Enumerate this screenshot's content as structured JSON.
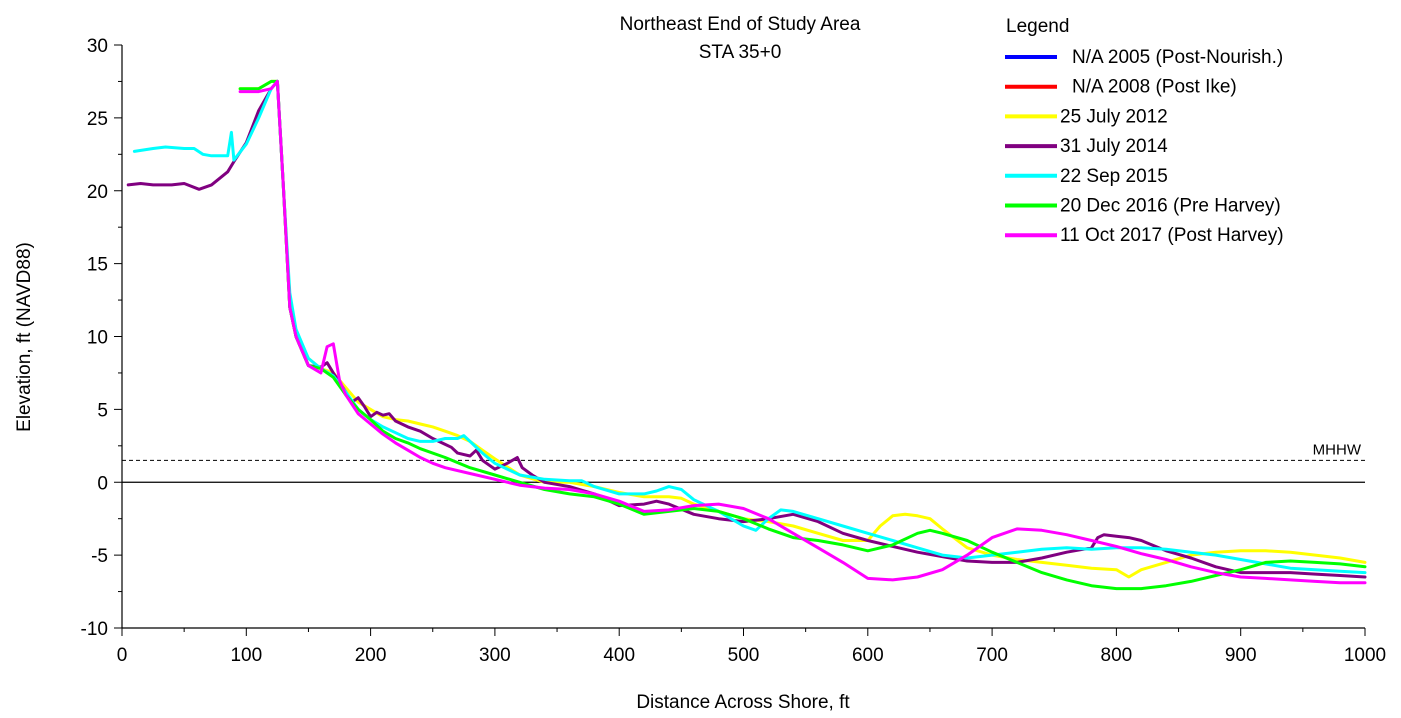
{
  "chart_data": {
    "type": "line",
    "title_line1": "Northeast End of Study Area",
    "title_line2": "STA 35+0",
    "xlabel": "Distance Across Shore, ft",
    "ylabel": "Elevation, ft (NAVD88)",
    "xlim": [
      0,
      1000
    ],
    "ylim": [
      -10,
      30
    ],
    "x_ticks": [
      0,
      100,
      200,
      300,
      400,
      500,
      600,
      700,
      800,
      900,
      1000
    ],
    "y_ticks": [
      -10,
      -5,
      0,
      5,
      10,
      15,
      20,
      25,
      30
    ],
    "legend_title": "Legend",
    "legend_position": "top-right",
    "reference_lines": [
      {
        "label": "MHHW",
        "y": 1.5,
        "style": "dashed"
      },
      {
        "label": "",
        "y": 0,
        "style": "solid"
      }
    ],
    "series": [
      {
        "name": "N/A 2005 (Post-Nourish.)",
        "color": "#0000ff",
        "x": [],
        "y": []
      },
      {
        "name": "N/A 2008 (Post Ike)",
        "color": "#ff0000",
        "x": [],
        "y": []
      },
      {
        "name": "25 July 2012",
        "color": "#ffff00",
        "x": [
          95,
          110,
          120,
          125,
          130,
          135,
          140,
          150,
          160,
          170,
          180,
          190,
          200,
          210,
          220,
          230,
          240,
          250,
          260,
          270,
          280,
          290,
          300,
          320,
          340,
          360,
          380,
          400,
          420,
          440,
          450,
          460,
          480,
          500,
          520,
          540,
          560,
          580,
          600,
          610,
          620,
          630,
          640,
          650,
          660,
          680,
          700,
          720,
          740,
          760,
          780,
          800,
          810,
          820,
          840,
          860,
          880,
          900,
          920,
          940,
          960,
          980,
          1000
        ],
        "y": [
          27,
          27,
          27.5,
          27.5,
          20,
          12,
          10,
          8.5,
          7.8,
          7.5,
          6.5,
          5.5,
          5,
          4.5,
          4.3,
          4.2,
          4,
          3.8,
          3.5,
          3.2,
          2.8,
          2.2,
          1.6,
          0.5,
          0,
          0,
          -0.3,
          -0.7,
          -1.0,
          -1.0,
          -1.1,
          -1.5,
          -2.0,
          -2.5,
          -2.7,
          -3.0,
          -3.5,
          -4.0,
          -4.0,
          -3.0,
          -2.3,
          -2.2,
          -2.3,
          -2.5,
          -3.2,
          -4.5,
          -5.0,
          -5.3,
          -5.5,
          -5.7,
          -5.9,
          -6.0,
          -6.5,
          -6.0,
          -5.5,
          -5.0,
          -4.8,
          -4.7,
          -4.7,
          -4.8,
          -5.0,
          -5.2,
          -5.5
        ]
      },
      {
        "name": "31 July 2014",
        "color": "#800080",
        "x": [
          5,
          15,
          25,
          40,
          50,
          62,
          72,
          85,
          90,
          100,
          110,
          120,
          125,
          130,
          135,
          140,
          150,
          160,
          165,
          170,
          180,
          185,
          190,
          195,
          200,
          205,
          210,
          215,
          220,
          230,
          240,
          250,
          260,
          265,
          270,
          280,
          285,
          290,
          295,
          300,
          310,
          318,
          322,
          330,
          340,
          360,
          380,
          400,
          420,
          430,
          440,
          460,
          480,
          500,
          520,
          540,
          560,
          580,
          600,
          620,
          640,
          660,
          680,
          700,
          720,
          740,
          760,
          780,
          785,
          790,
          800,
          810,
          820,
          840,
          860,
          880,
          900,
          920,
          940,
          960,
          980,
          1000
        ],
        "y": [
          20.4,
          20.5,
          20.4,
          20.4,
          20.5,
          20.1,
          20.4,
          21.3,
          22,
          23.3,
          25.5,
          27,
          27.5,
          20,
          12,
          10,
          8,
          7.9,
          8.2,
          7.5,
          6.2,
          5.5,
          5.8,
          5.2,
          4.5,
          4.8,
          4.6,
          4.7,
          4.2,
          3.8,
          3.5,
          3.0,
          2.6,
          2.4,
          2.0,
          1.8,
          2.2,
          1.5,
          1.2,
          0.9,
          1.3,
          1.7,
          1.0,
          0.5,
          0,
          -0.3,
          -0.8,
          -1.6,
          -1.5,
          -1.3,
          -1.5,
          -2.2,
          -2.5,
          -2.7,
          -2.5,
          -2.2,
          -2.7,
          -3.5,
          -4.0,
          -4.4,
          -4.8,
          -5.1,
          -5.4,
          -5.5,
          -5.5,
          -5.2,
          -4.8,
          -4.5,
          -3.8,
          -3.6,
          -3.7,
          -3.8,
          -4.0,
          -4.7,
          -5.2,
          -5.8,
          -6.2,
          -6.2,
          -6.2,
          -6.3,
          -6.4,
          -6.5
        ]
      },
      {
        "name": "22 Sep 2015",
        "color": "#00ffff",
        "x": [
          10,
          25,
          35,
          50,
          58,
          65,
          72,
          85,
          88,
          90,
          100,
          110,
          120,
          125,
          130,
          135,
          140,
          150,
          160,
          170,
          180,
          190,
          200,
          210,
          220,
          230,
          240,
          250,
          260,
          270,
          275,
          280,
          290,
          300,
          320,
          340,
          360,
          370,
          380,
          400,
          420,
          430,
          440,
          450,
          460,
          480,
          500,
          510,
          520,
          530,
          540,
          560,
          580,
          600,
          620,
          640,
          660,
          680,
          700,
          720,
          740,
          760,
          780,
          800,
          820,
          840,
          860,
          880,
          900,
          920,
          940,
          960,
          980,
          1000
        ],
        "y": [
          22.7,
          22.9,
          23,
          22.9,
          22.9,
          22.5,
          22.4,
          22.4,
          24,
          22.1,
          23.2,
          25,
          27,
          27.5,
          20,
          13,
          10.5,
          8.5,
          7.8,
          7.3,
          6.2,
          5,
          4.3,
          3.8,
          3.4,
          3.0,
          2.8,
          2.8,
          3.0,
          3.0,
          3.2,
          2.8,
          2.0,
          1.3,
          0.5,
          0.2,
          0.1,
          0.1,
          -0.3,
          -0.8,
          -0.8,
          -0.6,
          -0.3,
          -0.5,
          -1.2,
          -2.0,
          -3.0,
          -3.3,
          -2.5,
          -1.9,
          -2.0,
          -2.5,
          -3.0,
          -3.5,
          -4.0,
          -4.5,
          -5.0,
          -5.2,
          -5.0,
          -4.8,
          -4.6,
          -4.5,
          -4.6,
          -4.5,
          -4.5,
          -4.6,
          -4.8,
          -5.0,
          -5.3,
          -5.6,
          -5.9,
          -6.0,
          -6.1,
          -6.2
        ]
      },
      {
        "name": "20 Dec 2016 (Pre Harvey)",
        "color": "#00ff00",
        "x": [
          95,
          110,
          120,
          125,
          130,
          135,
          140,
          150,
          160,
          170,
          180,
          190,
          200,
          210,
          220,
          230,
          240,
          260,
          280,
          300,
          320,
          340,
          360,
          380,
          400,
          420,
          440,
          460,
          480,
          500,
          520,
          540,
          560,
          580,
          600,
          620,
          640,
          650,
          660,
          680,
          700,
          720,
          740,
          760,
          780,
          800,
          820,
          840,
          860,
          880,
          900,
          920,
          940,
          960,
          980,
          1000
        ],
        "y": [
          27,
          27,
          27.5,
          27.5,
          20,
          12,
          10,
          8,
          7.8,
          7.2,
          6.0,
          5.0,
          4.3,
          3.5,
          3.0,
          2.7,
          2.3,
          1.7,
          1.0,
          0.5,
          0,
          -0.5,
          -0.8,
          -1.0,
          -1.5,
          -2.2,
          -2.0,
          -1.8,
          -2.0,
          -2.5,
          -3.2,
          -3.8,
          -4.0,
          -4.3,
          -4.7,
          -4.3,
          -3.5,
          -3.3,
          -3.5,
          -4.0,
          -4.8,
          -5.5,
          -6.2,
          -6.7,
          -7.1,
          -7.3,
          -7.3,
          -7.1,
          -6.8,
          -6.4,
          -6.0,
          -5.5,
          -5.4,
          -5.5,
          -5.6,
          -5.8
        ]
      },
      {
        "name": "11 Oct 2017 (Post Harvey)",
        "color": "#ff00ff",
        "x": [
          95,
          110,
          120,
          125,
          130,
          135,
          140,
          150,
          160,
          165,
          170,
          175,
          180,
          190,
          200,
          210,
          220,
          230,
          240,
          250,
          260,
          280,
          300,
          320,
          340,
          360,
          380,
          400,
          420,
          440,
          460,
          480,
          500,
          520,
          540,
          560,
          580,
          600,
          620,
          640,
          660,
          680,
          700,
          720,
          740,
          760,
          780,
          800,
          820,
          840,
          860,
          880,
          900,
          920,
          940,
          960,
          980,
          1000
        ],
        "y": [
          26.8,
          26.8,
          27,
          27.5,
          20,
          12,
          10,
          8,
          7.5,
          9.3,
          9.5,
          7,
          6,
          4.7,
          4,
          3.3,
          2.7,
          2.2,
          1.7,
          1.3,
          1.0,
          0.6,
          0.2,
          -0.2,
          -0.4,
          -0.5,
          -0.8,
          -1.3,
          -2.0,
          -1.9,
          -1.6,
          -1.5,
          -1.8,
          -2.5,
          -3.5,
          -4.5,
          -5.5,
          -6.6,
          -6.7,
          -6.5,
          -6.0,
          -5.0,
          -3.8,
          -3.2,
          -3.3,
          -3.6,
          -4.0,
          -4.4,
          -4.9,
          -5.3,
          -5.8,
          -6.2,
          -6.5,
          -6.6,
          -6.7,
          -6.8,
          -6.9,
          -6.9
        ]
      }
    ]
  }
}
